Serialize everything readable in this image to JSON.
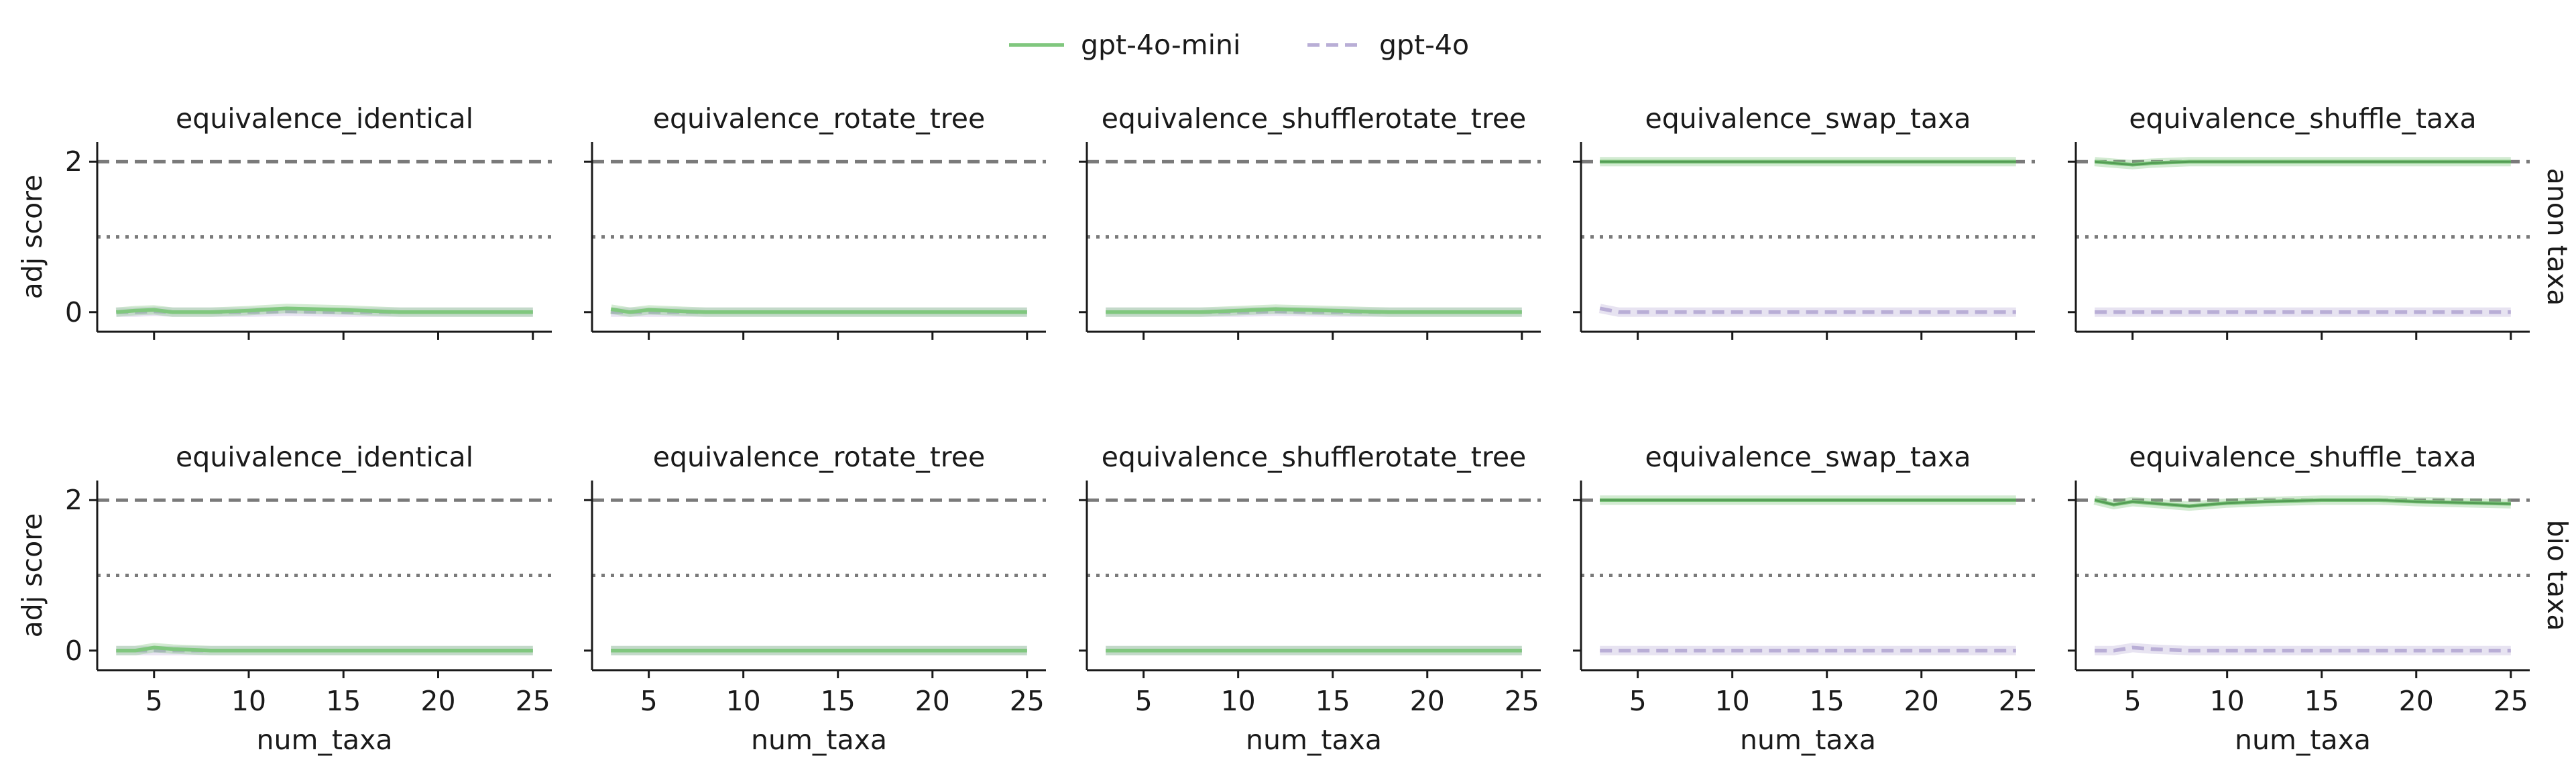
{
  "legend": {
    "entries": [
      {
        "name": "gpt-4o-mini",
        "color": "#80c77e",
        "style": "solid"
      },
      {
        "name": "gpt-4o",
        "color": "#b9aed6",
        "style": "dashed"
      }
    ],
    "position": "top-center"
  },
  "chart_data": {
    "type": "line",
    "grid": false,
    "xlabel": "num_taxa",
    "ylabel": "adj score",
    "xlim": [
      2,
      26
    ],
    "ylim": [
      -0.1,
      2.1
    ],
    "xticks": [
      5,
      10,
      15,
      20,
      25
    ],
    "yticks": [
      0,
      2
    ],
    "reference_lines": [
      {
        "y": 2,
        "style": "dashed",
        "color": "#7a7a7a"
      },
      {
        "y": 1,
        "style": "dotted",
        "color": "#7a7a7a"
      }
    ],
    "columns": [
      "equivalence_identical",
      "equivalence_rotate_tree",
      "equivalence_shufflerotate_tree",
      "equivalence_swap_taxa",
      "equivalence_shuffle_taxa"
    ],
    "rows": [
      "anon taxa",
      "bio taxa"
    ],
    "x": [
      3,
      4,
      5,
      6,
      8,
      10,
      12,
      15,
      18,
      20,
      25
    ],
    "panels": [
      {
        "row": "anon taxa",
        "column": "equivalence_identical",
        "series": [
          {
            "name": "gpt-4o-mini",
            "values": [
              0,
              0.02,
              0.03,
              0,
              0,
              0.02,
              0.05,
              0.03,
              0,
              0,
              0
            ]
          },
          {
            "name": "gpt-4o",
            "values": [
              0,
              0,
              0.01,
              0,
              0,
              0,
              0.01,
              0,
              0,
              0,
              0
            ]
          }
        ]
      },
      {
        "row": "anon taxa",
        "column": "equivalence_rotate_tree",
        "series": [
          {
            "name": "gpt-4o-mini",
            "values": [
              0.04,
              0,
              0.03,
              0.02,
              0,
              0,
              0,
              0,
              0,
              0,
              0
            ]
          },
          {
            "name": "gpt-4o",
            "values": [
              0,
              0,
              0,
              0,
              0,
              0,
              0,
              0,
              0,
              0,
              0
            ]
          }
        ]
      },
      {
        "row": "anon taxa",
        "column": "equivalence_shufflerotate_tree",
        "series": [
          {
            "name": "gpt-4o-mini",
            "values": [
              0,
              0,
              0,
              0,
              0,
              0.02,
              0.04,
              0.02,
              0,
              0,
              0
            ]
          },
          {
            "name": "gpt-4o",
            "values": [
              0,
              0,
              0,
              0,
              0,
              0,
              0.01,
              0,
              0,
              0,
              0
            ]
          }
        ]
      },
      {
        "row": "anon taxa",
        "column": "equivalence_swap_taxa",
        "series": [
          {
            "name": "gpt-4o-mini",
            "values": [
              2,
              2,
              2,
              2,
              2,
              2,
              2,
              2,
              2,
              2,
              2
            ]
          },
          {
            "name": "gpt-4o",
            "values": [
              0.05,
              0,
              0,
              0,
              0,
              0,
              0,
              0,
              0,
              0,
              0
            ]
          }
        ]
      },
      {
        "row": "anon taxa",
        "column": "equivalence_shuffle_taxa",
        "series": [
          {
            "name": "gpt-4o-mini",
            "values": [
              2,
              1.98,
              1.96,
              1.98,
              2,
              2,
              2,
              2,
              2,
              2,
              2
            ]
          },
          {
            "name": "gpt-4o",
            "values": [
              0,
              0,
              0,
              0,
              0,
              0,
              0,
              0,
              0,
              0,
              0
            ]
          }
        ]
      },
      {
        "row": "bio taxa",
        "column": "equivalence_identical",
        "series": [
          {
            "name": "gpt-4o-mini",
            "values": [
              0,
              0,
              0.04,
              0.02,
              0,
              0,
              0,
              0,
              0,
              0,
              0
            ]
          },
          {
            "name": "gpt-4o",
            "values": [
              0,
              0,
              0,
              0,
              0,
              0,
              0,
              0,
              0,
              0,
              0
            ]
          }
        ]
      },
      {
        "row": "bio taxa",
        "column": "equivalence_rotate_tree",
        "series": [
          {
            "name": "gpt-4o-mini",
            "values": [
              0,
              0,
              0,
              0,
              0,
              0,
              0,
              0,
              0,
              0,
              0
            ]
          },
          {
            "name": "gpt-4o",
            "values": [
              0,
              0,
              0,
              0,
              0,
              0,
              0,
              0,
              0,
              0,
              0
            ]
          }
        ]
      },
      {
        "row": "bio taxa",
        "column": "equivalence_shufflerotate_tree",
        "series": [
          {
            "name": "gpt-4o-mini",
            "values": [
              0,
              0,
              0,
              0,
              0,
              0,
              0,
              0,
              0,
              0,
              0
            ]
          },
          {
            "name": "gpt-4o",
            "values": [
              0,
              0,
              0,
              0,
              0,
              0,
              0,
              0,
              0,
              0,
              0
            ]
          }
        ]
      },
      {
        "row": "bio taxa",
        "column": "equivalence_swap_taxa",
        "series": [
          {
            "name": "gpt-4o-mini",
            "values": [
              2,
              2,
              2,
              2,
              2,
              2,
              2,
              2,
              2,
              2,
              2
            ]
          },
          {
            "name": "gpt-4o",
            "values": [
              0,
              0,
              0,
              0,
              0,
              0,
              0,
              0,
              0,
              0,
              0
            ]
          }
        ]
      },
      {
        "row": "bio taxa",
        "column": "equivalence_shuffle_taxa",
        "series": [
          {
            "name": "gpt-4o-mini",
            "values": [
              2,
              1.94,
              1.98,
              1.96,
              1.92,
              1.96,
              1.98,
              2,
              2,
              1.98,
              1.95
            ]
          },
          {
            "name": "gpt-4o",
            "values": [
              0,
              0,
              0.04,
              0.02,
              0,
              0,
              0,
              0,
              0,
              0,
              0
            ]
          }
        ]
      }
    ]
  }
}
